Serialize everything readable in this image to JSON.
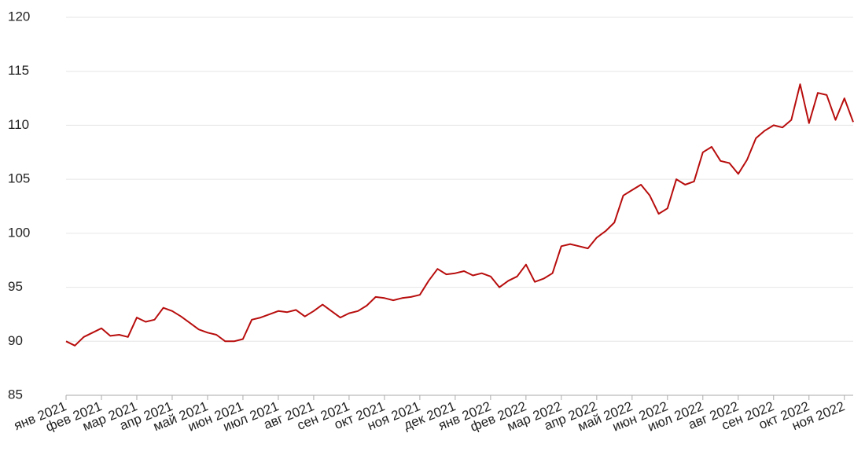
{
  "chart_data": {
    "type": "line",
    "categories": [
      "янв 2021",
      null,
      null,
      null,
      "фев 2021",
      null,
      null,
      null,
      "мар 2021",
      null,
      null,
      null,
      "апр 2021",
      null,
      null,
      null,
      "май 2021",
      null,
      null,
      null,
      "июн 2021",
      null,
      null,
      null,
      "июл 2021",
      null,
      null,
      null,
      "авг 2021",
      null,
      null,
      null,
      "сен 2021",
      null,
      null,
      null,
      "окт 2021",
      null,
      null,
      null,
      "ноя 2021",
      null,
      null,
      null,
      "дек 2021",
      null,
      null,
      null,
      "янв 2022",
      null,
      null,
      null,
      "фев 2022",
      null,
      null,
      null,
      "мар 2022",
      null,
      null,
      null,
      "апр 2022",
      null,
      null,
      null,
      "май 2022",
      null,
      null,
      null,
      "июн 2022",
      null,
      null,
      null,
      "июл 2022",
      null,
      null,
      null,
      "авг 2022",
      null,
      null,
      null,
      "сен 2022",
      null,
      null,
      null,
      "окт 2022",
      null,
      null,
      null,
      "ноя 2022",
      null
    ],
    "series": [
      {
        "color": "#b80d0d",
        "values": [
          90.0,
          89.6,
          90.4,
          90.8,
          91.2,
          90.5,
          90.6,
          90.4,
          92.2,
          91.8,
          92.0,
          93.1,
          92.8,
          92.3,
          91.7,
          91.1,
          90.8,
          90.6,
          90.0,
          90.0,
          90.2,
          92.0,
          92.2,
          92.5,
          92.8,
          92.7,
          92.9,
          92.3,
          92.8,
          93.4,
          92.8,
          92.2,
          92.6,
          92.8,
          93.3,
          94.1,
          94.0,
          93.8,
          94.0,
          94.1,
          94.3,
          95.6,
          96.7,
          96.2,
          96.3,
          96.5,
          96.1,
          96.3,
          96.0,
          95.0,
          95.6,
          96.0,
          97.1,
          95.5,
          95.8,
          96.3,
          98.8,
          99.0,
          98.8,
          98.6,
          99.6,
          100.2,
          101.0,
          103.5,
          104.0,
          104.5,
          103.5,
          101.8,
          102.3,
          105.0,
          104.5,
          104.8,
          107.5,
          108.0,
          106.7,
          106.5,
          105.5,
          106.8,
          108.8,
          109.5,
          110.0,
          109.8,
          110.5,
          113.8,
          110.2,
          113.0,
          112.8,
          110.5,
          112.5,
          110.3
        ]
      }
    ],
    "ylim": [
      85,
      120
    ],
    "yticks": [
      85,
      90,
      95,
      100,
      105,
      110,
      115,
      120
    ],
    "grid": true
  }
}
